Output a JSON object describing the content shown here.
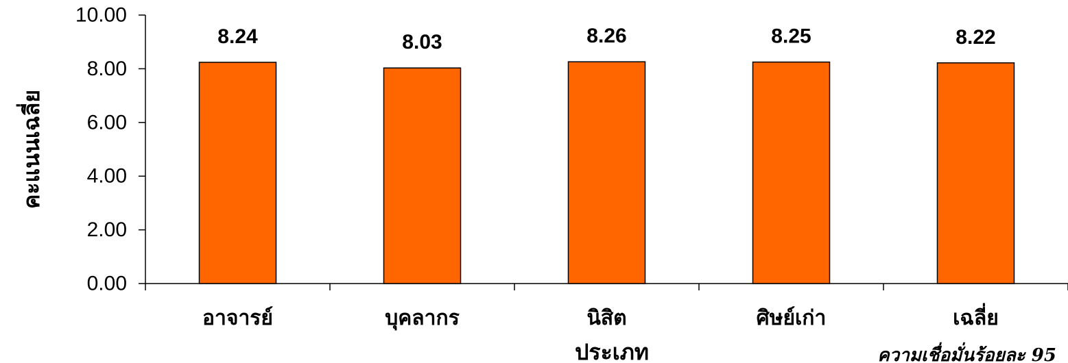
{
  "chart_data": {
    "type": "bar",
    "categories": [
      "อาจารย์",
      "บุคลากร",
      "นิสิต",
      "ศิษย์เก่า",
      "เฉลี่ย"
    ],
    "values": [
      8.24,
      8.03,
      8.26,
      8.25,
      8.22
    ],
    "value_labels": [
      "8.24",
      "8.03",
      "8.26",
      "8.25",
      "8.22"
    ],
    "xlabel": "ประเภท",
    "ylabel": "คะแนนเฉลี่ย",
    "ylim": [
      0,
      10
    ],
    "yticks": [
      "0.00",
      "2.00",
      "4.00",
      "6.00",
      "8.00",
      "10.00"
    ],
    "bar_color": "#FF6600",
    "grid": false,
    "legend": "none",
    "note": "ความเชื่อมั่นร้อยละ 95"
  }
}
